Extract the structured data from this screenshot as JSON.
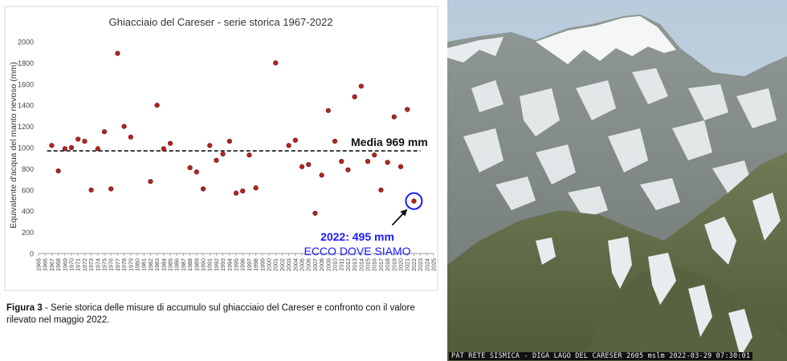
{
  "chart_data": {
    "type": "scatter",
    "title": "Ghiacciaio del Careser - serie storica 1967-2022",
    "ylabel": "Equivalente d'acqua del manto nevoso (mm)",
    "xlabel": "",
    "ylim": [
      0,
      2000
    ],
    "yticks": [
      0,
      200,
      400,
      600,
      800,
      1000,
      1200,
      1400,
      1600,
      1800,
      2000
    ],
    "xlim": [
      1965,
      2025
    ],
    "xticks": [
      1965,
      1966,
      1967,
      1968,
      1969,
      1970,
      1971,
      1972,
      1973,
      1974,
      1975,
      1976,
      1977,
      1978,
      1979,
      1980,
      1981,
      1982,
      1983,
      1984,
      1985,
      1986,
      1987,
      1988,
      1989,
      1990,
      1991,
      1992,
      1993,
      1994,
      1995,
      1996,
      1997,
      1998,
      1999,
      2000,
      2001,
      2002,
      2003,
      2004,
      2005,
      2006,
      2007,
      2008,
      2009,
      2010,
      2011,
      2012,
      2013,
      2014,
      2015,
      2016,
      2017,
      2018,
      2019,
      2020,
      2021,
      2022,
      2023,
      2024,
      2025
    ],
    "grid": false,
    "marker_color": "#b3261e",
    "points": [
      {
        "x": 1967,
        "y": 1020
      },
      {
        "x": 1968,
        "y": 780
      },
      {
        "x": 1969,
        "y": 990
      },
      {
        "x": 1970,
        "y": 1000
      },
      {
        "x": 1971,
        "y": 1080
      },
      {
        "x": 1972,
        "y": 1060
      },
      {
        "x": 1973,
        "y": 600
      },
      {
        "x": 1974,
        "y": 990
      },
      {
        "x": 1975,
        "y": 1150
      },
      {
        "x": 1976,
        "y": 610
      },
      {
        "x": 1977,
        "y": 1890
      },
      {
        "x": 1978,
        "y": 1200
      },
      {
        "x": 1979,
        "y": 1100
      },
      {
        "x": 1982,
        "y": 680
      },
      {
        "x": 1983,
        "y": 1400
      },
      {
        "x": 1984,
        "y": 990
      },
      {
        "x": 1985,
        "y": 1040
      },
      {
        "x": 1988,
        "y": 810
      },
      {
        "x": 1989,
        "y": 770
      },
      {
        "x": 1990,
        "y": 610
      },
      {
        "x": 1991,
        "y": 1020
      },
      {
        "x": 1992,
        "y": 880
      },
      {
        "x": 1993,
        "y": 940
      },
      {
        "x": 1994,
        "y": 1060
      },
      {
        "x": 1995,
        "y": 570
      },
      {
        "x": 1996,
        "y": 590
      },
      {
        "x": 1997,
        "y": 930
      },
      {
        "x": 1998,
        "y": 620
      },
      {
        "x": 2001,
        "y": 1800
      },
      {
        "x": 2003,
        "y": 1020
      },
      {
        "x": 2004,
        "y": 1070
      },
      {
        "x": 2005,
        "y": 820
      },
      {
        "x": 2006,
        "y": 840
      },
      {
        "x": 2007,
        "y": 380
      },
      {
        "x": 2008,
        "y": 740
      },
      {
        "x": 2009,
        "y": 1350
      },
      {
        "x": 2010,
        "y": 1060
      },
      {
        "x": 2011,
        "y": 870
      },
      {
        "x": 2012,
        "y": 790
      },
      {
        "x": 2013,
        "y": 1480
      },
      {
        "x": 2014,
        "y": 1580
      },
      {
        "x": 2015,
        "y": 870
      },
      {
        "x": 2016,
        "y": 930
      },
      {
        "x": 2017,
        "y": 600
      },
      {
        "x": 2018,
        "y": 860
      },
      {
        "x": 2019,
        "y": 1290
      },
      {
        "x": 2020,
        "y": 820
      },
      {
        "x": 2021,
        "y": 1360
      },
      {
        "x": 2022,
        "y": 495
      }
    ],
    "mean": {
      "value": 969,
      "label": "Media 969 mm"
    },
    "highlight": {
      "x": 2022,
      "y": 495,
      "label": "2022: 495 mm",
      "sublabel": "ECCO DOVE SIAMO",
      "color": "#1a1aff"
    }
  },
  "caption": {
    "figure_label": "Figura 3",
    "text": " - Serie storica delle misure di accumulo sul ghiacciaio del Careser e confronto con il valore rilevato nel maggio 2022."
  },
  "photo": {
    "description_icon": "mountain-photo",
    "stamp": "PAT RETE SISMICA - DIGA LAGO DEL CARESER 2605 mslm 2022-03-29 07:30:01"
  }
}
